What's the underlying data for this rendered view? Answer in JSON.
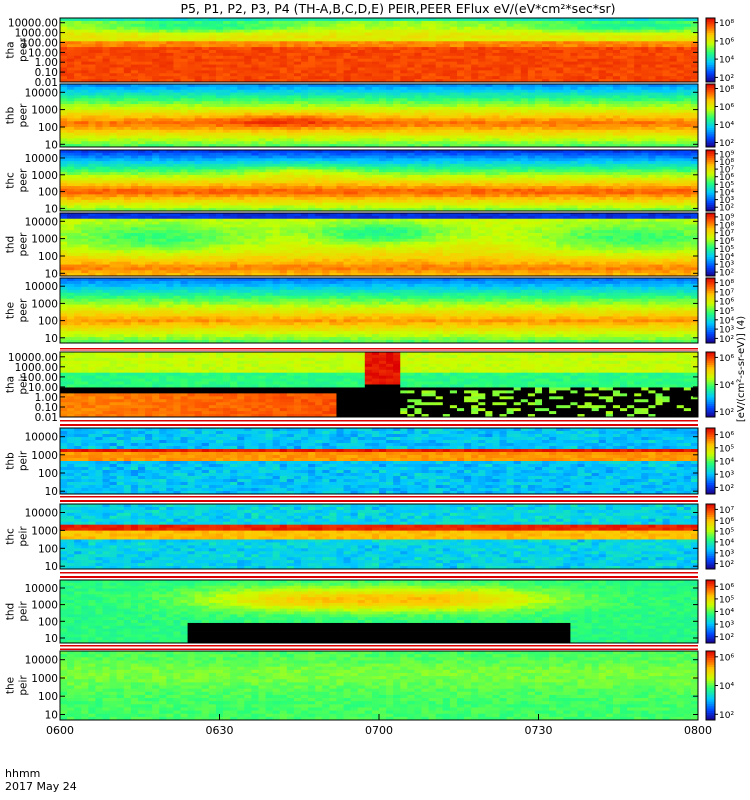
{
  "chart_data": {
    "type": "heatmap",
    "title": "P5, P1, P2, P3, P4 (TH-A,B,C,D,E) PEIR,PEER EFlux eV/(eV*cm²*sec*sr)",
    "x_axis": {
      "ticks": [
        "0600",
        "0630",
        "0700",
        "0730",
        "0800"
      ],
      "label_top": "hhmm",
      "label_bottom": "2017 May 24",
      "range": [
        "06:00",
        "08:00"
      ]
    },
    "colorbar_label": "[eV/(cm²-s-sr-eV)] (4)",
    "panels": [
      {
        "probe": "tha",
        "species": "peer",
        "yscale": "log",
        "ylim": [
          0.01,
          30000
        ],
        "yticks": [
          "10000.00",
          "1000.00",
          "100.00",
          "10.00",
          "1.00",
          "0.10",
          "0.01"
        ],
        "cticks": [
          "10⁸",
          "10⁶",
          "10⁴",
          "10²"
        ],
        "clim_exp": [
          1.5,
          8.5
        ],
        "style": "tha_peer"
      },
      {
        "probe": "thb",
        "species": "peer",
        "yscale": "log",
        "ylim": [
          7,
          30000
        ],
        "yticks": [
          "10000",
          "1000",
          "100",
          "10"
        ],
        "cticks": [
          "10⁸",
          "10⁶",
          "10⁴",
          "10²"
        ],
        "clim_exp": [
          1.5,
          8.5
        ],
        "style": "thb_peer"
      },
      {
        "probe": "thc",
        "species": "peer",
        "yscale": "log",
        "ylim": [
          7,
          30000
        ],
        "yticks": [
          "10000",
          "1000",
          "100",
          "10"
        ],
        "cticks": [
          "10⁹",
          "10⁸",
          "10⁷",
          "10⁶",
          "10⁵",
          "10⁴",
          "10³",
          "10²"
        ],
        "clim_exp": [
          1.5,
          9.5
        ],
        "style": "thc_peer"
      },
      {
        "probe": "thd",
        "species": "peer",
        "yscale": "log",
        "ylim": [
          7,
          30000
        ],
        "yticks": [
          "10000",
          "1000",
          "100",
          "10"
        ],
        "cticks": [
          "10⁹",
          "10⁸",
          "10⁷",
          "10⁶",
          "10⁵",
          "10⁴",
          "10³",
          "10²"
        ],
        "clim_exp": [
          1.5,
          9.5
        ],
        "style": "thd_peer"
      },
      {
        "probe": "the",
        "species": "peer",
        "yscale": "log",
        "ylim": [
          5,
          30000
        ],
        "yticks": [
          "10000",
          "1000",
          "100",
          "10"
        ],
        "cticks": [
          "10⁸",
          "10⁷",
          "10⁶",
          "10⁵",
          "10⁴",
          "10³",
          "10²"
        ],
        "clim_exp": [
          1.5,
          8.5
        ],
        "style": "the_peer"
      },
      {
        "probe": "tha",
        "species": "peir",
        "yscale": "log",
        "ylim": [
          0.01,
          30000
        ],
        "yticks": [
          "10000.00",
          "1000.00",
          "100.00",
          "10.00",
          "1.00",
          "0.10",
          "0.01"
        ],
        "cticks": [
          "10⁶",
          "10⁴",
          "10²"
        ],
        "clim_exp": [
          1.5,
          7.5
        ],
        "style": "tha_peir"
      },
      {
        "probe": "thb",
        "species": "peir",
        "yscale": "log",
        "ylim": [
          7,
          30000
        ],
        "yticks": [
          "10000",
          "1000",
          "100",
          "10"
        ],
        "cticks": [
          "10⁶",
          "10⁵",
          "10⁴",
          "10³",
          "10²"
        ],
        "clim_exp": [
          1.5,
          6.5
        ],
        "style": "thb_peir"
      },
      {
        "probe": "thc",
        "species": "peir",
        "yscale": "log",
        "ylim": [
          7,
          30000
        ],
        "yticks": [
          "10000",
          "1000",
          "100",
          "10"
        ],
        "cticks": [
          "10⁷",
          "10⁶",
          "10⁵",
          "10⁴",
          "10³",
          "10²"
        ],
        "clim_exp": [
          1.5,
          7.5
        ],
        "style": "thc_peir"
      },
      {
        "probe": "thd",
        "species": "peir",
        "yscale": "log",
        "ylim": [
          5,
          30000
        ],
        "yticks": [
          "10000",
          "1000",
          "100",
          "10"
        ],
        "cticks": [
          "10⁶",
          "10⁵",
          "10⁴",
          "10³",
          "10²"
        ],
        "clim_exp": [
          1.5,
          6.5
        ],
        "style": "thd_peir"
      },
      {
        "probe": "the",
        "species": "peir",
        "yscale": "log",
        "ylim": [
          5,
          30000
        ],
        "yticks": [
          "10000",
          "1000",
          "100",
          "10"
        ],
        "cticks": [
          "10⁶",
          "10⁴",
          "10²"
        ],
        "clim_exp": [
          1.5,
          7.5
        ],
        "style": "the_peir"
      }
    ]
  }
}
